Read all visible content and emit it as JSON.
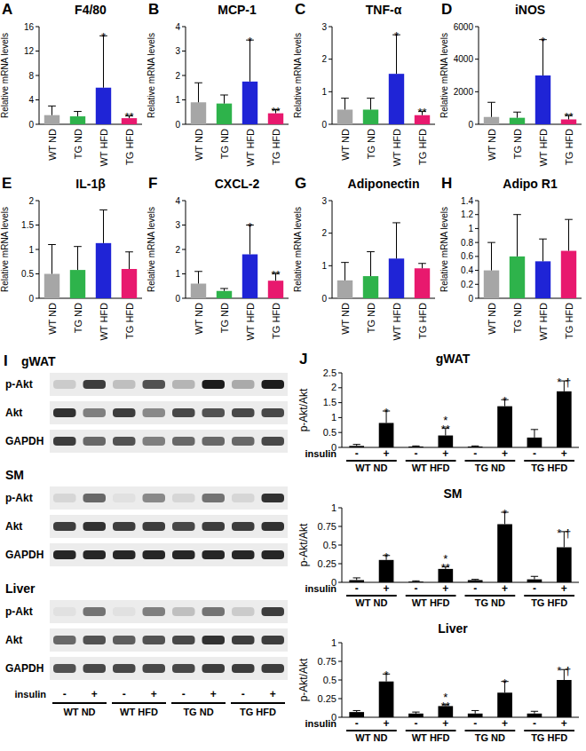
{
  "chart_data": [
    {
      "type": "bar",
      "panel": "A",
      "title": "F4/80",
      "y_label": "Relative mRNA levels",
      "categories": [
        "WT ND",
        "TG ND",
        "WT HFD",
        "TG HFD"
      ],
      "values": [
        1.5,
        1.3,
        6,
        1.0
      ],
      "errors": [
        1.5,
        0.8,
        8.5,
        0.4
      ],
      "colors": [
        "#a6a6a6",
        "#2eb34b",
        "#1f24d6",
        "#e8196e"
      ],
      "ylim": [
        0,
        16
      ],
      "yticks": [
        0,
        4,
        8,
        12,
        16
      ],
      "annotations": [
        null,
        null,
        "*",
        "**"
      ]
    },
    {
      "type": "bar",
      "panel": "B",
      "title": "MCP-1",
      "y_label": "Relative mRNA levels",
      "categories": [
        "WT ND",
        "TG ND",
        "WT HFD",
        "TG HFD"
      ],
      "values": [
        0.9,
        0.85,
        1.75,
        0.45
      ],
      "errors": [
        0.8,
        0.35,
        1.7,
        0.15
      ],
      "colors": [
        "#a6a6a6",
        "#2eb34b",
        "#1f24d6",
        "#e8196e"
      ],
      "ylim": [
        0,
        4
      ],
      "yticks": [
        0,
        1,
        2,
        3,
        4
      ],
      "annotations": [
        null,
        null,
        "*",
        "**"
      ]
    },
    {
      "type": "bar",
      "panel": "C",
      "title": "TNF-α",
      "y_label": "Relative mRNA levels",
      "categories": [
        "WT ND",
        "TG ND",
        "WT HFD",
        "TG HFD"
      ],
      "values": [
        0.45,
        0.45,
        1.55,
        0.28
      ],
      "errors": [
        0.35,
        0.35,
        1.2,
        0.12
      ],
      "colors": [
        "#a6a6a6",
        "#2eb34b",
        "#1f24d6",
        "#e8196e"
      ],
      "ylim": [
        0,
        3
      ],
      "yticks": [
        0,
        1,
        2,
        3
      ],
      "annotations": [
        null,
        null,
        "*",
        "**"
      ]
    },
    {
      "type": "bar",
      "panel": "D",
      "title": "iNOS",
      "y_label": "Relative mRNA levels",
      "categories": [
        "WT ND",
        "TG ND",
        "WT HFD",
        "TG HFD"
      ],
      "values": [
        450,
        400,
        3000,
        300
      ],
      "errors": [
        900,
        350,
        2200,
        250
      ],
      "colors": [
        "#a6a6a6",
        "#2eb34b",
        "#1f24d6",
        "#e8196e"
      ],
      "ylim": [
        0,
        6000
      ],
      "yticks": [
        0,
        2000,
        4000,
        6000
      ],
      "annotations": [
        null,
        null,
        "*",
        "**"
      ]
    },
    {
      "type": "bar",
      "panel": "E",
      "title": "IL-1β",
      "y_label": "Relative mRNA levels",
      "categories": [
        "WT ND",
        "TG ND",
        "WT HFD",
        "TG HFD"
      ],
      "values": [
        0.5,
        0.58,
        1.13,
        0.6
      ],
      "errors": [
        0.6,
        0.48,
        0.68,
        0.35
      ],
      "colors": [
        "#a6a6a6",
        "#2eb34b",
        "#1f24d6",
        "#e8196e"
      ],
      "ylim": [
        0,
        2
      ],
      "yticks": [
        0,
        0.5,
        1,
        1.5,
        2
      ]
    },
    {
      "type": "bar",
      "panel": "F",
      "title": "CXCL-2",
      "y_label": "Relative mRNA levels",
      "categories": [
        "WT ND",
        "TG ND",
        "WT HFD",
        "TG HFD"
      ],
      "values": [
        0.6,
        0.3,
        1.8,
        0.72
      ],
      "errors": [
        0.5,
        0.1,
        1.2,
        0.3
      ],
      "colors": [
        "#a6a6a6",
        "#2eb34b",
        "#1f24d6",
        "#e8196e"
      ],
      "ylim": [
        0,
        4
      ],
      "yticks": [
        0,
        1,
        2,
        3,
        4
      ],
      "annotations": [
        null,
        null,
        "*",
        "**"
      ]
    },
    {
      "type": "bar",
      "panel": "G",
      "title": "Adiponectin",
      "y_label": "Relative mRNA levels",
      "categories": [
        "WT ND",
        "TG ND",
        "WT HFD",
        "TG HFD"
      ],
      "values": [
        0.55,
        0.68,
        1.22,
        0.92
      ],
      "errors": [
        0.55,
        0.75,
        1.1,
        0.15
      ],
      "colors": [
        "#a6a6a6",
        "#2eb34b",
        "#1f24d6",
        "#e8196e"
      ],
      "ylim": [
        0,
        3
      ],
      "yticks": [
        0,
        1,
        2,
        3
      ]
    },
    {
      "type": "bar",
      "panel": "H",
      "title": "Adipo R1",
      "y_label": "Relative mRNA levels",
      "categories": [
        "WT ND",
        "TG ND",
        "WT HFD",
        "TG HFD"
      ],
      "values": [
        0.4,
        0.6,
        0.53,
        0.68
      ],
      "errors": [
        0.4,
        0.6,
        0.32,
        0.45
      ],
      "colors": [
        "#a6a6a6",
        "#2eb34b",
        "#1f24d6",
        "#e8196e"
      ],
      "ylim": [
        0,
        1.4
      ],
      "yticks": [
        0,
        0.2,
        0.4,
        0.6,
        0.8,
        1,
        1.2,
        1.4
      ]
    },
    {
      "type": "bar",
      "panel": "J",
      "title": "gWAT",
      "y_label": "p-Akt/Akt",
      "x_label": "insulin",
      "categories": [
        "-",
        "+",
        "-",
        "+",
        "-",
        "+",
        "-",
        "+"
      ],
      "groups": [
        "WT ND",
        "WT HFD",
        "TG ND",
        "TG HFD"
      ],
      "values": [
        0.05,
        0.82,
        0.03,
        0.4,
        0.03,
        1.38,
        0.33,
        1.88
      ],
      "errors": [
        0.05,
        0.4,
        0.02,
        0.25,
        0.02,
        0.22,
        0.27,
        0.35
      ],
      "color": "#000000",
      "ylim": [
        0,
        2.5
      ],
      "yticks": [
        0,
        0.5,
        1,
        1.5,
        2,
        2.5
      ],
      "annotations": [
        null,
        [
          "*"
        ],
        null,
        [
          "*",
          "**"
        ],
        null,
        [
          "*"
        ],
        null,
        [
          "* †"
        ]
      ]
    },
    {
      "type": "bar",
      "title": "SM",
      "y_label": "p-Akt/Akt",
      "x_label": "insulin",
      "categories": [
        "-",
        "+",
        "-",
        "+",
        "-",
        "+",
        "-",
        "+"
      ],
      "groups": [
        "WT ND",
        "WT HFD",
        "TG ND",
        "TG HFD"
      ],
      "values": [
        0.03,
        0.3,
        0.01,
        0.18,
        0.03,
        0.78,
        0.04,
        0.47
      ],
      "errors": [
        0.03,
        0.06,
        0.01,
        0.03,
        0.01,
        0.16,
        0.04,
        0.21
      ],
      "color": "#000000",
      "ylim": [
        0,
        1
      ],
      "yticks": [
        0,
        0.25,
        0.5,
        0.75,
        1
      ],
      "annotations": [
        null,
        [
          "*"
        ],
        null,
        [
          "*",
          "**"
        ],
        null,
        [
          "*"
        ],
        null,
        [
          "* †"
        ]
      ]
    },
    {
      "type": "bar",
      "title": "Liver",
      "y_label": "p-Akt/Akt",
      "x_label": "insulin",
      "categories": [
        "-",
        "+",
        "-",
        "+",
        "-",
        "+",
        "-",
        "+"
      ],
      "groups": [
        "WT ND",
        "WT HFD",
        "TG ND",
        "TG HFD"
      ],
      "values": [
        0.07,
        0.48,
        0.05,
        0.15,
        0.05,
        0.33,
        0.05,
        0.5
      ],
      "errors": [
        0.02,
        0.1,
        0.02,
        0.02,
        0.04,
        0.15,
        0.03,
        0.14
      ],
      "color": "#000000",
      "ylim": [
        0,
        1
      ],
      "yticks": [
        0,
        0.25,
        0.5,
        0.75,
        1
      ],
      "annotations": [
        null,
        [
          "*"
        ],
        null,
        [
          "*",
          "**"
        ],
        null,
        [
          "*"
        ],
        null,
        [
          "* †"
        ]
      ]
    }
  ],
  "blot": {
    "panel": "I",
    "x_label": "insulin",
    "lanes": [
      "-",
      "+",
      "-",
      "+",
      "-",
      "+",
      "-",
      "+"
    ],
    "groups": [
      "WT ND",
      "WT HFD",
      "TG ND",
      "TG HFD"
    ],
    "sections": [
      {
        "title": "gWAT",
        "rows": [
          {
            "label": "p-Akt",
            "bands": [
              0.15,
              0.8,
              0.2,
              0.7,
              0.25,
              0.95,
              0.3,
              0.95
            ]
          },
          {
            "label": "Akt",
            "bands": [
              0.85,
              0.5,
              0.8,
              0.45,
              0.75,
              0.7,
              0.75,
              0.75
            ]
          },
          {
            "label": "GAPDH",
            "bands": [
              0.8,
              0.6,
              0.7,
              0.5,
              0.6,
              0.6,
              0.6,
              0.75
            ]
          }
        ]
      },
      {
        "title": "SM",
        "rows": [
          {
            "label": "p-Akt",
            "bands": [
              0.1,
              0.6,
              0.05,
              0.45,
              0.1,
              0.55,
              0.1,
              0.85
            ]
          },
          {
            "label": "Akt",
            "bands": [
              0.8,
              0.85,
              0.8,
              0.8,
              0.75,
              0.8,
              0.8,
              0.85
            ]
          },
          {
            "label": "GAPDH",
            "bands": [
              0.9,
              0.9,
              0.9,
              0.9,
              0.9,
              0.9,
              0.9,
              0.9
            ]
          }
        ]
      },
      {
        "title": "Liver",
        "rows": [
          {
            "label": "p-Akt",
            "bands": [
              0.05,
              0.55,
              0.05,
              0.5,
              0.2,
              0.55,
              0.15,
              0.8
            ]
          },
          {
            "label": "Akt",
            "bands": [
              0.6,
              0.7,
              0.65,
              0.7,
              0.75,
              0.85,
              0.8,
              0.8
            ]
          },
          {
            "label": "GAPDH",
            "bands": [
              0.7,
              0.75,
              0.75,
              0.75,
              0.75,
              0.8,
              0.8,
              0.8
            ]
          }
        ]
      }
    ]
  }
}
